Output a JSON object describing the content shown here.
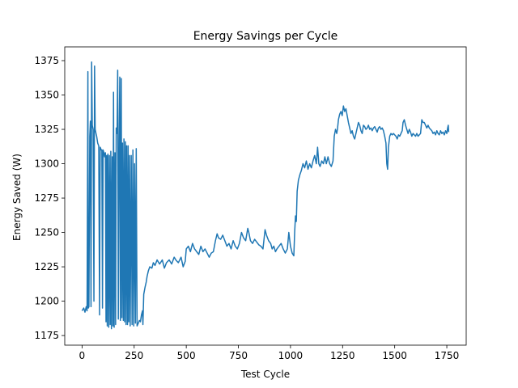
{
  "chart_data": {
    "type": "line",
    "title": "Energy Savings per Cycle",
    "xlabel": "Test Cycle",
    "ylabel": "Energy Saved (W)",
    "xlim": [
      -83,
      1843
    ],
    "ylim": [
      1168,
      1385
    ],
    "x_ticks": [
      0,
      250,
      500,
      750,
      1000,
      1250,
      1500,
      1750
    ],
    "y_ticks": [
      1175,
      1200,
      1225,
      1250,
      1275,
      1300,
      1325,
      1350,
      1375
    ],
    "grid": false,
    "series": [
      {
        "color": "#1f77b4",
        "points": [
          [
            0,
            1193
          ],
          [
            8,
            1195
          ],
          [
            14,
            1192
          ],
          [
            20,
            1196
          ],
          [
            24,
            1193
          ],
          [
            28,
            1367
          ],
          [
            30,
            1195
          ],
          [
            33,
            1196
          ],
          [
            37,
            1320
          ],
          [
            40,
            1331
          ],
          [
            43,
            1196
          ],
          [
            46,
            1374
          ],
          [
            49,
            1328
          ],
          [
            53,
            1325
          ],
          [
            57,
            1200
          ],
          [
            60,
            1371
          ],
          [
            63,
            1325
          ],
          [
            67,
            1322
          ],
          [
            70,
            1320
          ],
          [
            75,
            1315
          ],
          [
            80,
            1313
          ],
          [
            84,
            1190
          ],
          [
            87,
            1312
          ],
          [
            92,
            1310
          ],
          [
            95,
            1310
          ],
          [
            98,
            1195
          ],
          [
            101,
            1310
          ],
          [
            105,
            1308
          ],
          [
            108,
            1305
          ],
          [
            112,
            1308
          ],
          [
            115,
            1185
          ],
          [
            118,
            1306
          ],
          [
            121,
            1182
          ],
          [
            124,
            1307
          ],
          [
            128,
            1181
          ],
          [
            131,
            1306
          ],
          [
            135,
            1183
          ],
          [
            138,
            1309
          ],
          [
            141,
            1180
          ],
          [
            145,
            1305
          ],
          [
            148,
            1182
          ],
          [
            151,
            1352
          ],
          [
            154,
            1181
          ],
          [
            158,
            1308
          ],
          [
            161,
            1183
          ],
          [
            164,
            1326
          ],
          [
            168,
            1322
          ],
          [
            171,
            1368
          ],
          [
            174,
            1187
          ],
          [
            178,
            1318
          ],
          [
            181,
            1363
          ],
          [
            184,
            1186
          ],
          [
            188,
            1362
          ],
          [
            191,
            1188
          ],
          [
            194,
            1315
          ],
          [
            198,
            1186
          ],
          [
            201,
            1318
          ],
          [
            204,
            1185
          ],
          [
            208,
            1316
          ],
          [
            211,
            1183
          ],
          [
            214,
            1313
          ],
          [
            218,
            1183
          ],
          [
            221,
            1313
          ],
          [
            224,
            1185
          ],
          [
            228,
            1306
          ],
          [
            231,
            1182
          ],
          [
            236,
            1306
          ],
          [
            240,
            1183
          ],
          [
            244,
            1310
          ],
          [
            248,
            1182
          ],
          [
            252,
            1300
          ],
          [
            256,
            1184
          ],
          [
            260,
            1311
          ],
          [
            264,
            1182
          ],
          [
            270,
            1184
          ],
          [
            275,
            1186
          ],
          [
            280,
            1185
          ],
          [
            285,
            1190
          ],
          [
            290,
            1193
          ],
          [
            292,
            1183
          ],
          [
            296,
            1205
          ],
          [
            302,
            1210
          ],
          [
            308,
            1214
          ],
          [
            312,
            1218
          ],
          [
            318,
            1222
          ],
          [
            325,
            1225
          ],
          [
            335,
            1224
          ],
          [
            342,
            1228
          ],
          [
            350,
            1226
          ],
          [
            360,
            1230
          ],
          [
            372,
            1227
          ],
          [
            385,
            1230
          ],
          [
            395,
            1224
          ],
          [
            405,
            1228
          ],
          [
            418,
            1230
          ],
          [
            430,
            1227
          ],
          [
            442,
            1232
          ],
          [
            450,
            1230
          ],
          [
            462,
            1228
          ],
          [
            475,
            1232
          ],
          [
            485,
            1225
          ],
          [
            495,
            1229
          ],
          [
            500,
            1238
          ],
          [
            510,
            1240
          ],
          [
            520,
            1236
          ],
          [
            530,
            1242
          ],
          [
            540,
            1238
          ],
          [
            550,
            1236
          ],
          [
            560,
            1234
          ],
          [
            570,
            1240
          ],
          [
            580,
            1236
          ],
          [
            590,
            1238
          ],
          [
            600,
            1235
          ],
          [
            610,
            1232
          ],
          [
            620,
            1235
          ],
          [
            630,
            1236
          ],
          [
            640,
            1244
          ],
          [
            648,
            1249
          ],
          [
            655,
            1246
          ],
          [
            665,
            1245
          ],
          [
            675,
            1248
          ],
          [
            685,
            1244
          ],
          [
            695,
            1240
          ],
          [
            705,
            1242
          ],
          [
            715,
            1238
          ],
          [
            725,
            1244
          ],
          [
            735,
            1240
          ],
          [
            745,
            1238
          ],
          [
            755,
            1242
          ],
          [
            765,
            1250
          ],
          [
            775,
            1246
          ],
          [
            785,
            1244
          ],
          [
            795,
            1253
          ],
          [
            800,
            1250
          ],
          [
            808,
            1244
          ],
          [
            818,
            1242
          ],
          [
            828,
            1245
          ],
          [
            838,
            1243
          ],
          [
            848,
            1241
          ],
          [
            858,
            1240
          ],
          [
            868,
            1238
          ],
          [
            878,
            1252
          ],
          [
            885,
            1248
          ],
          [
            895,
            1244
          ],
          [
            905,
            1242
          ],
          [
            912,
            1238
          ],
          [
            920,
            1240
          ],
          [
            928,
            1236
          ],
          [
            935,
            1238
          ],
          [
            945,
            1240
          ],
          [
            955,
            1242
          ],
          [
            965,
            1238
          ],
          [
            975,
            1235
          ],
          [
            985,
            1238
          ],
          [
            992,
            1250
          ],
          [
            1000,
            1240
          ],
          [
            1008,
            1235
          ],
          [
            1016,
            1233
          ],
          [
            1020,
            1250
          ],
          [
            1024,
            1262
          ],
          [
            1028,
            1258
          ],
          [
            1032,
            1280
          ],
          [
            1038,
            1288
          ],
          [
            1045,
            1292
          ],
          [
            1052,
            1295
          ],
          [
            1060,
            1300
          ],
          [
            1068,
            1297
          ],
          [
            1076,
            1302
          ],
          [
            1084,
            1296
          ],
          [
            1092,
            1300
          ],
          [
            1100,
            1297
          ],
          [
            1108,
            1302
          ],
          [
            1116,
            1306
          ],
          [
            1124,
            1300
          ],
          [
            1130,
            1312
          ],
          [
            1136,
            1300
          ],
          [
            1142,
            1298
          ],
          [
            1150,
            1302
          ],
          [
            1158,
            1300
          ],
          [
            1165,
            1305
          ],
          [
            1172,
            1300
          ],
          [
            1180,
            1305
          ],
          [
            1188,
            1300
          ],
          [
            1196,
            1298
          ],
          [
            1204,
            1302
          ],
          [
            1210,
            1320
          ],
          [
            1216,
            1325
          ],
          [
            1222,
            1322
          ],
          [
            1226,
            1326
          ],
          [
            1230,
            1332
          ],
          [
            1236,
            1336
          ],
          [
            1242,
            1338
          ],
          [
            1248,
            1335
          ],
          [
            1254,
            1342
          ],
          [
            1260,
            1338
          ],
          [
            1266,
            1340
          ],
          [
            1272,
            1335
          ],
          [
            1278,
            1330
          ],
          [
            1284,
            1326
          ],
          [
            1290,
            1322
          ],
          [
            1296,
            1324
          ],
          [
            1302,
            1320
          ],
          [
            1308,
            1318
          ],
          [
            1314,
            1322
          ],
          [
            1320,
            1326
          ],
          [
            1326,
            1330
          ],
          [
            1332,
            1328
          ],
          [
            1338,
            1324
          ],
          [
            1344,
            1322
          ],
          [
            1350,
            1328
          ],
          [
            1356,
            1327
          ],
          [
            1362,
            1325
          ],
          [
            1368,
            1326
          ],
          [
            1374,
            1328
          ],
          [
            1380,
            1325
          ],
          [
            1386,
            1326
          ],
          [
            1392,
            1324
          ],
          [
            1398,
            1326
          ],
          [
            1404,
            1327
          ],
          [
            1410,
            1325
          ],
          [
            1416,
            1323
          ],
          [
            1422,
            1326
          ],
          [
            1428,
            1327
          ],
          [
            1434,
            1325
          ],
          [
            1440,
            1326
          ],
          [
            1446,
            1324
          ],
          [
            1452,
            1320
          ],
          [
            1458,
            1315
          ],
          [
            1462,
            1300
          ],
          [
            1466,
            1296
          ],
          [
            1470,
            1312
          ],
          [
            1476,
            1320
          ],
          [
            1482,
            1322
          ],
          [
            1488,
            1321
          ],
          [
            1494,
            1322
          ],
          [
            1500,
            1321
          ],
          [
            1506,
            1320
          ],
          [
            1512,
            1318
          ],
          [
            1518,
            1321
          ],
          [
            1524,
            1320
          ],
          [
            1530,
            1322
          ],
          [
            1536,
            1324
          ],
          [
            1540,
            1330
          ],
          [
            1546,
            1332
          ],
          [
            1552,
            1328
          ],
          [
            1558,
            1325
          ],
          [
            1564,
            1322
          ],
          [
            1570,
            1325
          ],
          [
            1576,
            1323
          ],
          [
            1582,
            1320
          ],
          [
            1588,
            1322
          ],
          [
            1594,
            1321
          ],
          [
            1600,
            1320
          ],
          [
            1606,
            1322
          ],
          [
            1612,
            1320
          ],
          [
            1618,
            1321
          ],
          [
            1624,
            1322
          ],
          [
            1630,
            1332
          ],
          [
            1636,
            1330
          ],
          [
            1642,
            1330
          ],
          [
            1648,
            1328
          ],
          [
            1654,
            1326
          ],
          [
            1660,
            1328
          ],
          [
            1666,
            1326
          ],
          [
            1672,
            1325
          ],
          [
            1678,
            1324
          ],
          [
            1684,
            1322
          ],
          [
            1690,
            1323
          ],
          [
            1696,
            1321
          ],
          [
            1702,
            1324
          ],
          [
            1708,
            1322
          ],
          [
            1714,
            1321
          ],
          [
            1720,
            1324
          ],
          [
            1726,
            1322
          ],
          [
            1732,
            1323
          ],
          [
            1738,
            1321
          ],
          [
            1744,
            1324
          ],
          [
            1750,
            1322
          ],
          [
            1754,
            1326
          ],
          [
            1757,
            1328
          ],
          [
            1759,
            1323
          ]
        ]
      }
    ]
  }
}
